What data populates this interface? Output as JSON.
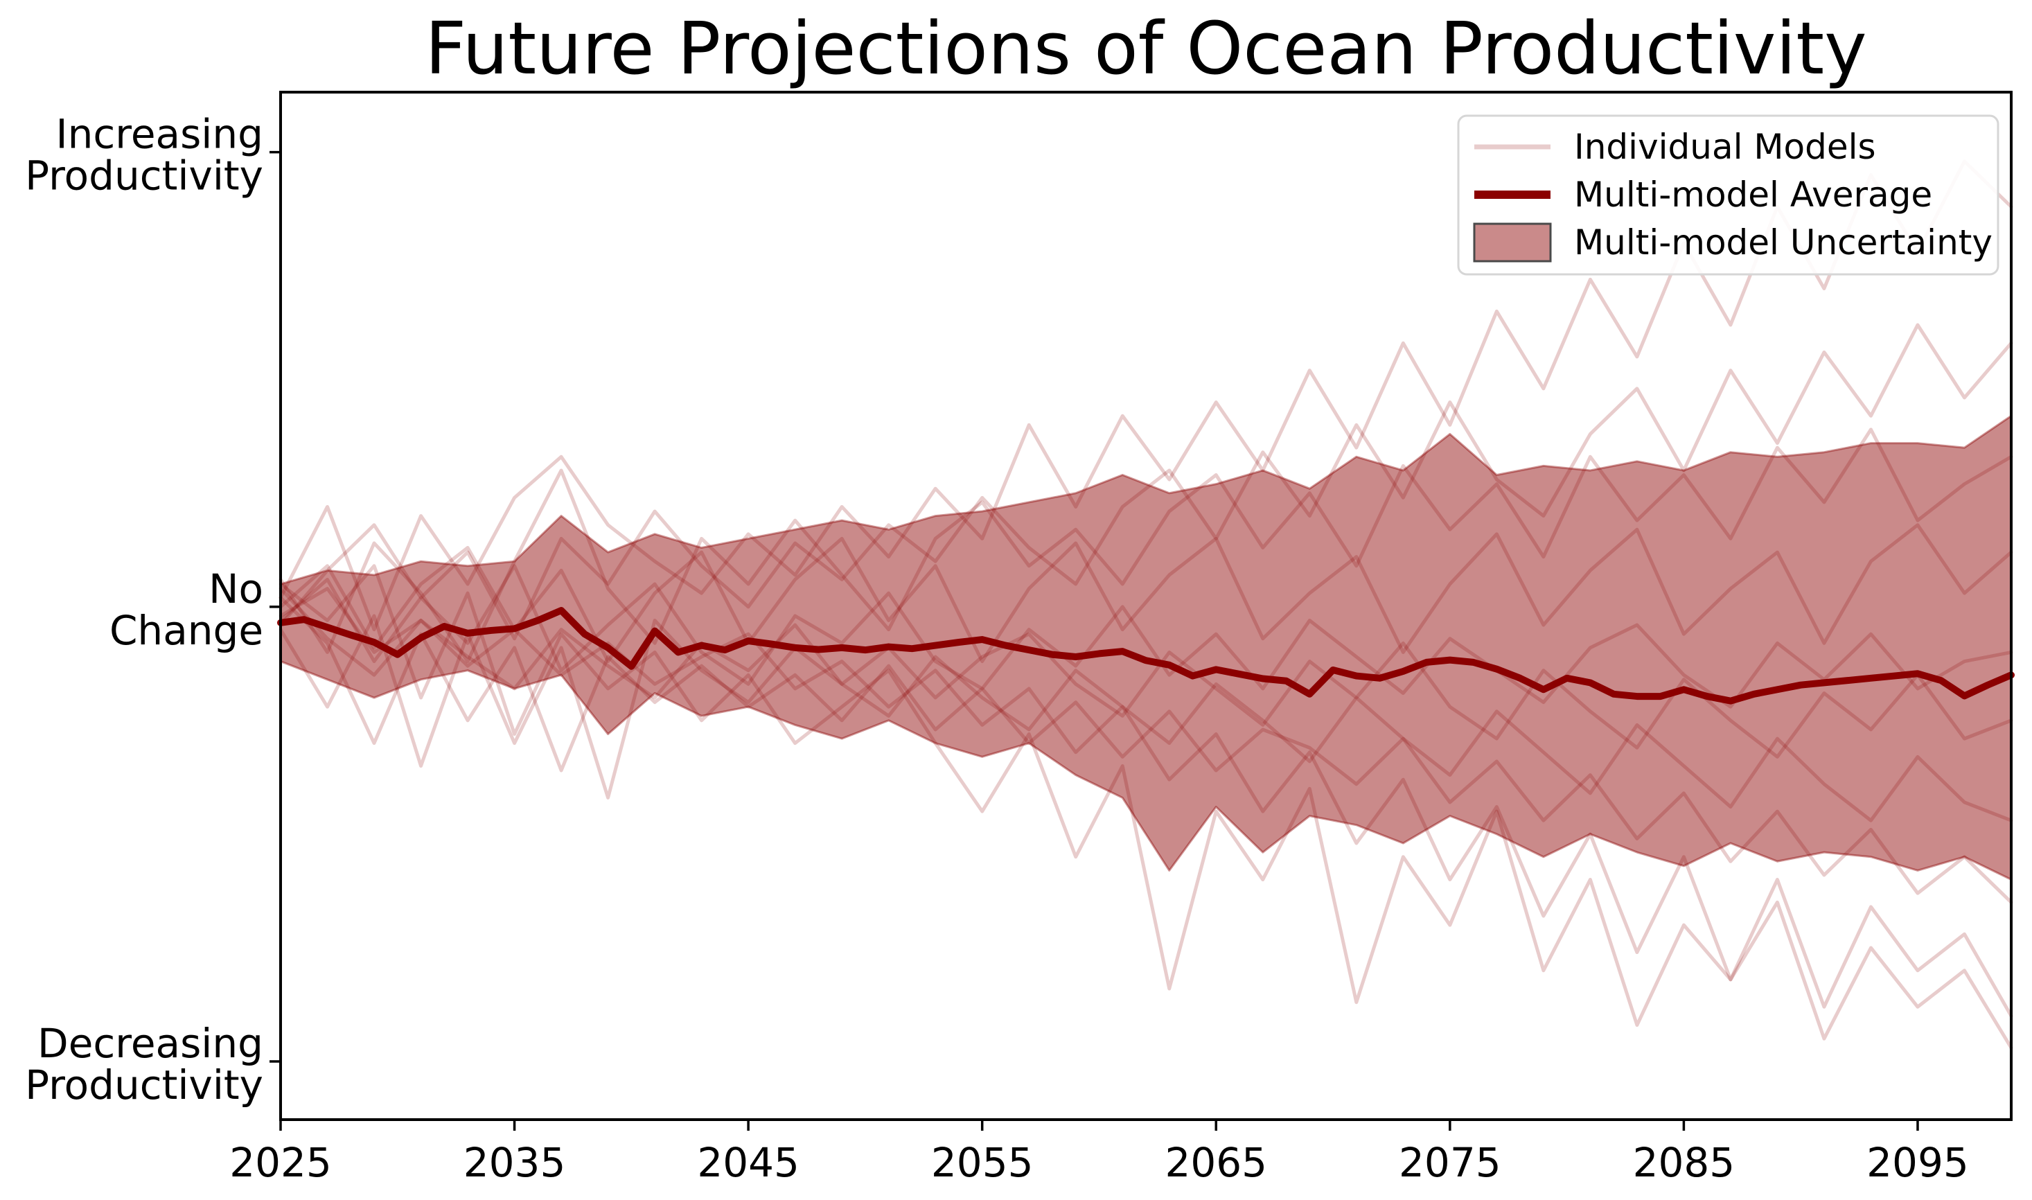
{
  "title": "Future Projections of Ocean Productivity",
  "colors": {
    "base": "#8b0000",
    "model_line_opacity": 0.2,
    "band_fill_opacity": 0.46,
    "band_edge_opacity": 0.42,
    "axis": "#000000",
    "legend_border": "#d6d6d6",
    "legend_patch_edge": "#4a4a4a",
    "background": "#ffffff"
  },
  "legend": {
    "items": [
      {
        "label": "Individual Models",
        "swatch": "light-line"
      },
      {
        "label": "Multi-model Average",
        "swatch": "dark-line"
      },
      {
        "label": "Multi-model Uncertainty",
        "swatch": "filled-patch"
      }
    ]
  },
  "chart_data": {
    "type": "line",
    "title": "Future Projections of Ocean Productivity",
    "xlabel": "",
    "ylabel": "",
    "grid": false,
    "legend_position": "upper right",
    "x_axis": {
      "range": [
        2025,
        2099
      ],
      "ticks": [
        2025,
        2035,
        2045,
        2055,
        2065,
        2075,
        2085,
        2095
      ]
    },
    "y_axis": {
      "range": [
        -1.128,
        1.132
      ],
      "ticks": [
        {
          "value": 1,
          "lines": [
            "Increasing",
            "Productivity"
          ]
        },
        {
          "value": 0,
          "lines": [
            "No",
            "Change"
          ]
        },
        {
          "value": -1,
          "lines": [
            "Decreasing",
            "Productivity"
          ]
        }
      ]
    },
    "average": {
      "name": "Multi-model Average",
      "years": [
        2025,
        2026,
        2027,
        2028,
        2029,
        2030,
        2031,
        2032,
        2033,
        2034,
        2035,
        2036,
        2037,
        2038,
        2039,
        2040,
        2041,
        2042,
        2043,
        2044,
        2045,
        2046,
        2047,
        2048,
        2049,
        2050,
        2051,
        2052,
        2053,
        2054,
        2055,
        2056,
        2057,
        2058,
        2059,
        2060,
        2061,
        2062,
        2063,
        2064,
        2065,
        2066,
        2067,
        2068,
        2069,
        2070,
        2071,
        2072,
        2073,
        2074,
        2075,
        2076,
        2077,
        2078,
        2079,
        2080,
        2081,
        2082,
        2083,
        2084,
        2085,
        2086,
        2087,
        2088,
        2089,
        2090,
        2091,
        2092,
        2093,
        2094,
        2095,
        2096,
        2097,
        2098,
        2099
      ],
      "values": [
        -0.035,
        -0.028,
        -0.045,
        -0.062,
        -0.078,
        -0.105,
        -0.068,
        -0.043,
        -0.058,
        -0.052,
        -0.048,
        -0.03,
        -0.008,
        -0.06,
        -0.09,
        -0.131,
        -0.053,
        -0.1,
        -0.085,
        -0.095,
        -0.075,
        -0.082,
        -0.09,
        -0.094,
        -0.09,
        -0.095,
        -0.088,
        -0.092,
        -0.085,
        -0.078,
        -0.072,
        -0.085,
        -0.095,
        -0.105,
        -0.11,
        -0.103,
        -0.098,
        -0.118,
        -0.128,
        -0.152,
        -0.138,
        -0.148,
        -0.158,
        -0.163,
        -0.192,
        -0.139,
        -0.152,
        -0.157,
        -0.142,
        -0.122,
        -0.117,
        -0.122,
        -0.137,
        -0.157,
        -0.182,
        -0.157,
        -0.167,
        -0.192,
        -0.197,
        -0.197,
        -0.182,
        -0.197,
        -0.207,
        -0.192,
        -0.182,
        -0.172,
        -0.167,
        -0.162,
        -0.157,
        -0.152,
        -0.147,
        -0.162,
        -0.196,
        -0.172,
        -0.15
      ]
    },
    "uncertainty": {
      "name": "Multi-model Uncertainty",
      "years": [
        2025,
        2027,
        2029,
        2031,
        2033,
        2035,
        2037,
        2039,
        2041,
        2043,
        2045,
        2047,
        2049,
        2051,
        2053,
        2055,
        2057,
        2059,
        2061,
        2063,
        2065,
        2067,
        2069,
        2071,
        2073,
        2075,
        2077,
        2079,
        2081,
        2083,
        2085,
        2087,
        2089,
        2091,
        2093,
        2095,
        2097,
        2099
      ],
      "upper": [
        0.05,
        0.08,
        0.07,
        0.1,
        0.09,
        0.1,
        0.2,
        0.12,
        0.16,
        0.13,
        0.15,
        0.17,
        0.19,
        0.17,
        0.2,
        0.21,
        0.23,
        0.25,
        0.29,
        0.25,
        0.27,
        0.3,
        0.26,
        0.33,
        0.3,
        0.38,
        0.29,
        0.31,
        0.3,
        0.32,
        0.3,
        0.34,
        0.33,
        0.34,
        0.36,
        0.36,
        0.35,
        0.42
      ],
      "lower": [
        -0.12,
        -0.16,
        -0.2,
        -0.16,
        -0.14,
        -0.18,
        -0.15,
        -0.28,
        -0.19,
        -0.24,
        -0.22,
        -0.26,
        -0.29,
        -0.25,
        -0.3,
        -0.33,
        -0.3,
        -0.37,
        -0.42,
        -0.58,
        -0.44,
        -0.54,
        -0.46,
        -0.48,
        -0.52,
        -0.46,
        -0.5,
        -0.55,
        -0.5,
        -0.54,
        -0.57,
        -0.52,
        -0.56,
        -0.54,
        -0.55,
        -0.58,
        -0.55,
        -0.6
      ]
    },
    "model_years": [
      2025,
      2027,
      2029,
      2031,
      2033,
      2035,
      2037,
      2039,
      2041,
      2043,
      2045,
      2047,
      2049,
      2051,
      2053,
      2055,
      2057,
      2059,
      2061,
      2063,
      2065,
      2067,
      2069,
      2071,
      2073,
      2075,
      2077,
      2079,
      2081,
      2083,
      2085,
      2087,
      2089,
      2091,
      2093,
      2095,
      2097,
      2099
    ],
    "individual_models": [
      {
        "name": "model-1",
        "values": [
          0.02,
          0.22,
          -0.05,
          0.2,
          0.05,
          0.24,
          0.33,
          0.18,
          0.1,
          0.03,
          0.16,
          0.07,
          0.22,
          0.11,
          0.26,
          0.15,
          0.4,
          0.22,
          0.42,
          0.28,
          0.45,
          0.3,
          0.52,
          0.35,
          0.58,
          0.4,
          0.65,
          0.48,
          0.72,
          0.55,
          0.8,
          0.62,
          0.88,
          0.7,
          0.95,
          0.78,
          0.98,
          0.88
        ]
      },
      {
        "name": "model-2",
        "values": [
          -0.04,
          0.08,
          0.18,
          0.02,
          0.12,
          -0.07,
          0.15,
          0.05,
          0.21,
          0.09,
          0.0,
          0.14,
          0.06,
          0.18,
          0.1,
          0.24,
          0.13,
          0.05,
          0.22,
          0.3,
          0.15,
          0.34,
          0.2,
          0.4,
          0.24,
          0.45,
          0.28,
          0.2,
          0.38,
          0.48,
          0.3,
          0.52,
          0.36,
          0.56,
          0.42,
          0.62,
          0.46,
          0.58
        ]
      },
      {
        "name": "model-3",
        "values": [
          0.06,
          -0.1,
          0.14,
          0.03,
          -0.12,
          0.1,
          0.3,
          0.04,
          -0.08,
          0.15,
          0.05,
          0.19,
          0.07,
          -0.05,
          0.15,
          0.23,
          0.09,
          0.17,
          0.05,
          0.21,
          0.29,
          0.13,
          0.25,
          0.09,
          0.31,
          0.17,
          0.27,
          0.11,
          0.33,
          0.19,
          0.29,
          0.15,
          0.35,
          0.23,
          0.39,
          0.19,
          0.27,
          0.33
        ]
      },
      {
        "name": "model-4",
        "values": [
          0.0,
          0.09,
          -0.09,
          0.05,
          0.13,
          -0.05,
          0.08,
          -0.12,
          0.03,
          0.12,
          -0.08,
          0.06,
          0.15,
          -0.03,
          0.09,
          -0.12,
          0.04,
          0.14,
          -0.05,
          0.07,
          0.15,
          -0.07,
          0.03,
          0.11,
          -0.1,
          0.05,
          0.16,
          -0.04,
          0.08,
          0.17,
          -0.06,
          0.04,
          0.12,
          -0.08,
          0.1,
          0.18,
          0.03,
          0.12
        ]
      },
      {
        "name": "model-5",
        "values": [
          -0.03,
          0.06,
          -0.12,
          0.02,
          -0.08,
          0.09,
          -0.14,
          -0.04,
          0.05,
          -0.1,
          -0.17,
          -0.02,
          -0.08,
          0.03,
          -0.12,
          -0.18,
          -0.05,
          -0.13,
          0.0,
          -0.15,
          -0.06,
          -0.18,
          -0.03,
          -0.11,
          -0.19,
          -0.07,
          -0.14,
          -0.21,
          -0.09,
          -0.04,
          -0.15,
          -0.22,
          -0.08,
          -0.16,
          -0.06,
          -0.18,
          -0.12,
          -0.1
        ]
      },
      {
        "name": "model-6",
        "values": [
          0.04,
          -0.07,
          -0.15,
          -0.03,
          -0.11,
          -0.18,
          -0.05,
          -0.13,
          -0.2,
          -0.08,
          -0.14,
          -0.04,
          -0.17,
          -0.09,
          -0.2,
          -0.11,
          -0.06,
          -0.17,
          -0.24,
          -0.1,
          -0.18,
          -0.26,
          -0.12,
          -0.2,
          -0.08,
          -0.22,
          -0.29,
          -0.14,
          -0.23,
          -0.31,
          -0.16,
          -0.25,
          -0.33,
          -0.19,
          -0.27,
          -0.15,
          -0.29,
          -0.25
        ]
      },
      {
        "name": "model-7",
        "values": [
          -0.05,
          -0.22,
          -0.02,
          -0.35,
          -0.06,
          -0.3,
          -0.09,
          -0.42,
          -0.03,
          -0.14,
          -0.21,
          -0.09,
          -0.17,
          -0.24,
          -0.11,
          -0.2,
          -0.27,
          -0.14,
          -0.22,
          -0.3,
          -0.17,
          -0.25,
          -0.34,
          -0.2,
          -0.29,
          -0.37,
          -0.23,
          -0.32,
          -0.41,
          -0.26,
          -0.35,
          -0.44,
          -0.29,
          -0.39,
          -0.47,
          -0.33,
          -0.43,
          -0.47
        ]
      },
      {
        "name": "model-8",
        "values": [
          0.02,
          -0.08,
          -0.3,
          -0.06,
          -0.25,
          -0.09,
          -0.36,
          -0.11,
          -0.21,
          -0.13,
          -0.22,
          -0.15,
          -0.25,
          -0.13,
          -0.27,
          -0.18,
          -0.3,
          -0.21,
          -0.33,
          -0.23,
          -0.36,
          -0.27,
          -0.31,
          -0.39,
          -0.29,
          -0.43,
          -0.34,
          -0.47,
          -0.37,
          -0.51,
          -0.41,
          -0.56,
          -0.45,
          -0.59,
          -0.49,
          -0.63,
          -0.55,
          -0.65
        ]
      },
      {
        "name": "model-9",
        "values": [
          -0.02,
          0.04,
          -0.1,
          -0.03,
          -0.13,
          -0.05,
          -0.15,
          -0.08,
          -0.17,
          -0.11,
          -0.06,
          -0.18,
          -0.12,
          -0.22,
          -0.14,
          -0.26,
          -0.18,
          -0.32,
          -0.22,
          -0.38,
          -0.28,
          -0.45,
          -0.32,
          -0.52,
          -0.38,
          -0.6,
          -0.44,
          -0.68,
          -0.5,
          -0.76,
          -0.55,
          -0.82,
          -0.6,
          -0.88,
          -0.66,
          -0.8,
          -0.72,
          -0.9
        ]
      },
      {
        "name": "model-10",
        "values": [
          0.05,
          -0.03,
          0.09,
          -0.2,
          0.03,
          -0.28,
          -0.06,
          -0.18,
          -0.1,
          -0.25,
          -0.15,
          -0.3,
          -0.22,
          -0.14,
          -0.3,
          -0.45,
          -0.28,
          -0.55,
          -0.35,
          -0.84,
          -0.45,
          -0.6,
          -0.4,
          -0.87,
          -0.55,
          -0.7,
          -0.45,
          -0.8,
          -0.6,
          -0.92,
          -0.7,
          -0.82,
          -0.65,
          -0.95,
          -0.75,
          -0.88,
          -0.8,
          -0.97
        ]
      }
    ]
  }
}
